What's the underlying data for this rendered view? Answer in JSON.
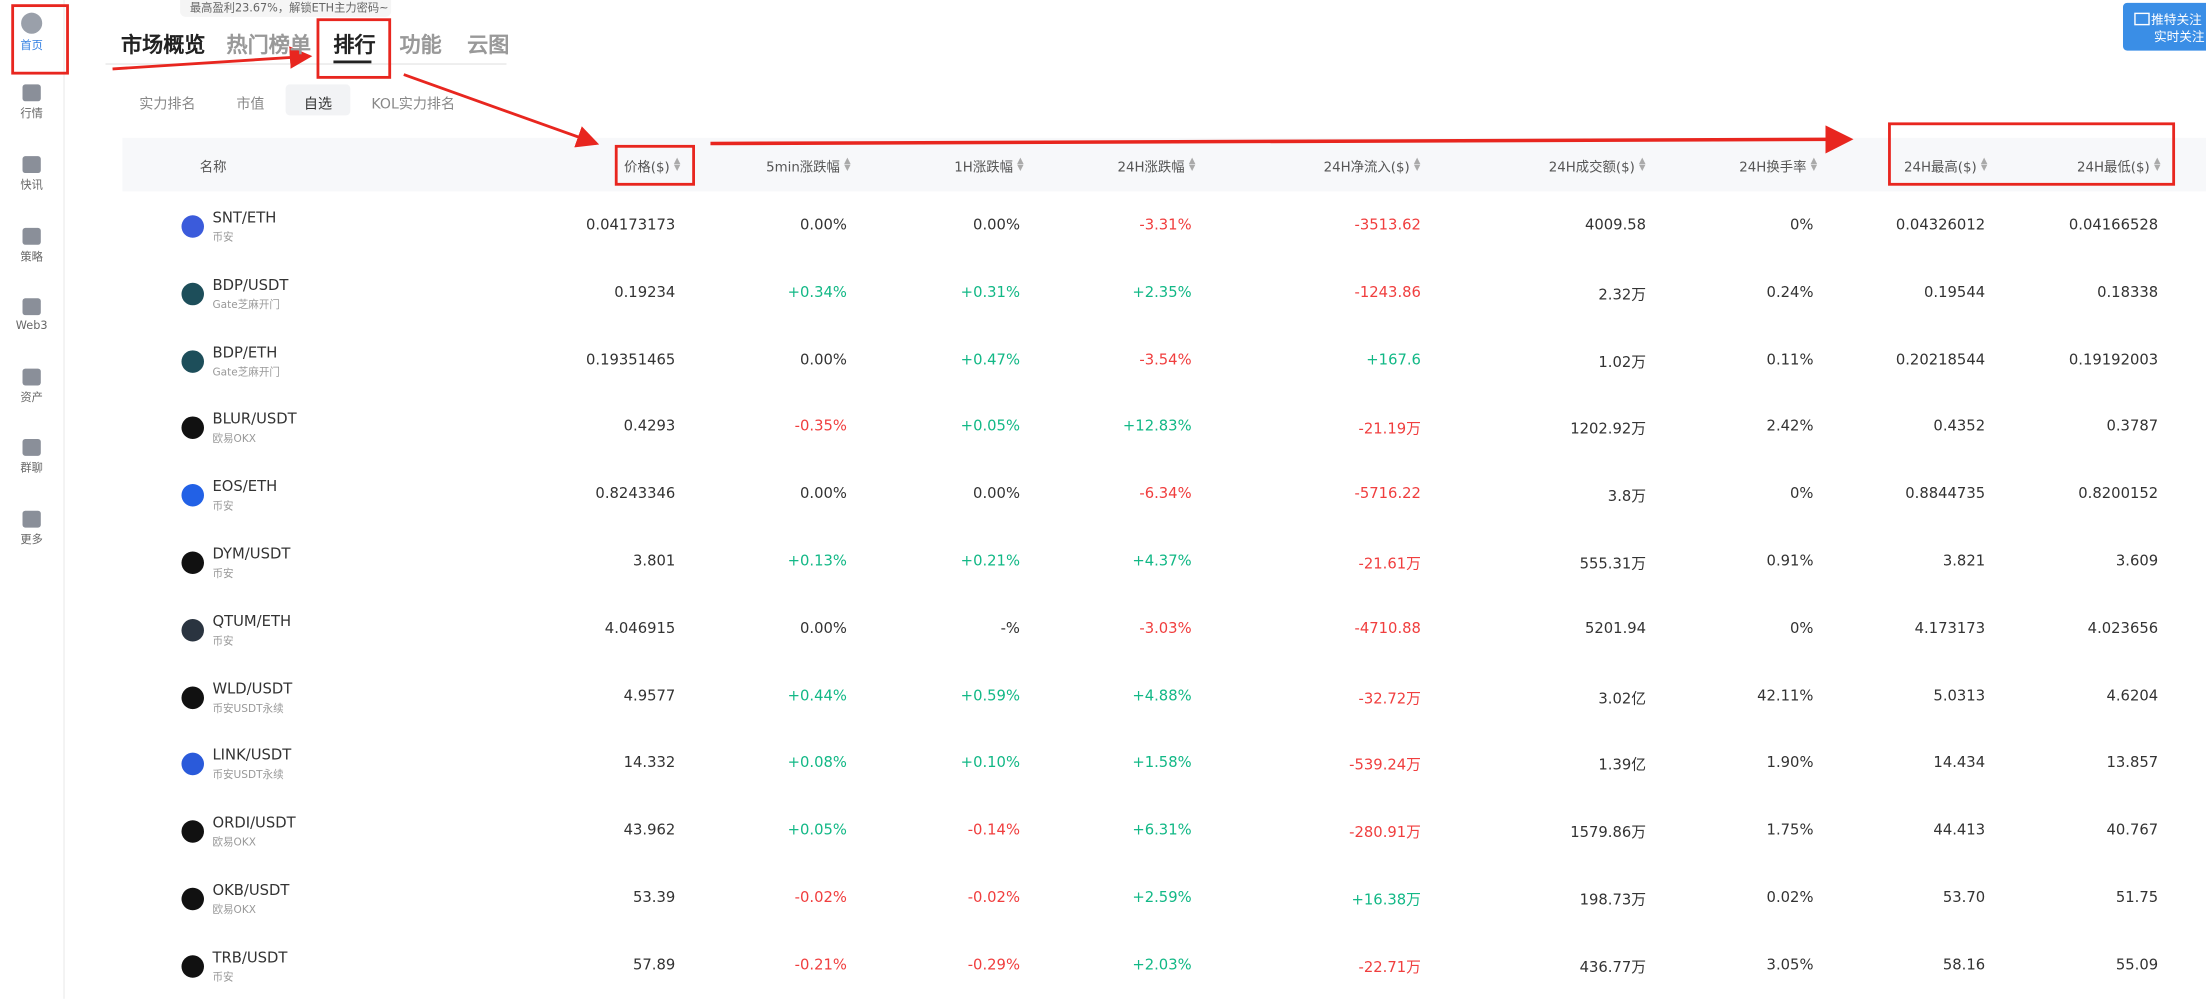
{
  "sidebar": [
    "首页",
    "行情",
    "快讯",
    "策略",
    "Web3",
    "资产",
    "群聊",
    "更多"
  ],
  "banner": "最高盈利23.67%，解锁ETH主力密码~",
  "tabs": [
    "市场概览",
    "热门榜单",
    "排行",
    "功能",
    "云图"
  ],
  "subtabs": [
    "实力排名",
    "市值",
    "自选",
    "KOL实力排名"
  ],
  "header_button": [
    "推特关注",
    "实时关注"
  ],
  "table": {
    "columns": [
      "名称",
      "价格($)",
      "5min涨跌幅",
      "1H涨跌幅",
      "24H涨跌幅",
      "24H净流入($)",
      "24H成交额($)",
      "24H换手率",
      "24H最高($)",
      "24H最低($)"
    ],
    "rows": [
      {
        "pair": "SNT/ETH",
        "exchange": "币安",
        "cells": [
          "0.04173173",
          "0.00%",
          "0.00%",
          "-3.31%",
          "-3513.62",
          "4009.58",
          "0%",
          "0.04326012",
          "0.04166528"
        ]
      },
      {
        "pair": "BDP/USDT",
        "exchange": "Gate芝麻开门",
        "cells": [
          "0.19234",
          "+0.34%",
          "+0.31%",
          "+2.35%",
          "-1243.86",
          "2.32万",
          "0.24%",
          "0.19544",
          "0.18338"
        ]
      },
      {
        "pair": "BDP/ETH",
        "exchange": "Gate芝麻开门",
        "cells": [
          "0.19351465",
          "0.00%",
          "+0.47%",
          "-3.54%",
          "+167.6",
          "1.02万",
          "0.11%",
          "0.20218544",
          "0.19192003"
        ]
      },
      {
        "pair": "BLUR/USDT",
        "exchange": "欧易OKX",
        "cells": [
          "0.4293",
          "-0.35%",
          "+0.05%",
          "+12.83%",
          "-21.19万",
          "1202.92万",
          "2.42%",
          "0.4352",
          "0.3787"
        ]
      },
      {
        "pair": "EOS/ETH",
        "exchange": "币安",
        "cells": [
          "0.8243346",
          "0.00%",
          "0.00%",
          "-6.34%",
          "-5716.22",
          "3.8万",
          "0%",
          "0.8844735",
          "0.8200152"
        ]
      },
      {
        "pair": "DYM/USDT",
        "exchange": "币安",
        "cells": [
          "3.801",
          "+0.13%",
          "+0.21%",
          "+4.37%",
          "-21.61万",
          "555.31万",
          "0.91%",
          "3.821",
          "3.609"
        ]
      },
      {
        "pair": "QTUM/ETH",
        "exchange": "币安",
        "cells": [
          "4.046915",
          "0.00%",
          "-%",
          "-3.03%",
          "-4710.88",
          "5201.94",
          "0%",
          "4.173173",
          "4.023656"
        ]
      },
      {
        "pair": "WLD/USDT",
        "exchange": "币安USDT永续",
        "cells": [
          "4.9577",
          "+0.44%",
          "+0.59%",
          "+4.88%",
          "-32.72万",
          "3.02亿",
          "42.11%",
          "5.0313",
          "4.6204"
        ]
      },
      {
        "pair": "LINK/USDT",
        "exchange": "币安USDT永续",
        "cells": [
          "14.332",
          "+0.08%",
          "+0.10%",
          "+1.58%",
          "-539.24万",
          "1.39亿",
          "1.90%",
          "14.434",
          "13.857"
        ]
      },
      {
        "pair": "ORDI/USDT",
        "exchange": "欧易OKX",
        "cells": [
          "43.962",
          "+0.05%",
          "-0.14%",
          "+6.31%",
          "-280.91万",
          "1579.86万",
          "1.75%",
          "44.413",
          "40.767"
        ]
      },
      {
        "pair": "OKB/USDT",
        "exchange": "欧易OKX",
        "cells": [
          "53.39",
          "-0.02%",
          "-0.02%",
          "+2.59%",
          "+16.38万",
          "198.73万",
          "0.02%",
          "53.70",
          "51.75"
        ]
      },
      {
        "pair": "TRB/USDT",
        "exchange": "币安",
        "cells": [
          "57.89",
          "-0.21%",
          "-0.29%",
          "+2.03%",
          "-22.71万",
          "436.77万",
          "3.05%",
          "58.16",
          "55.09"
        ]
      }
    ]
  }
}
